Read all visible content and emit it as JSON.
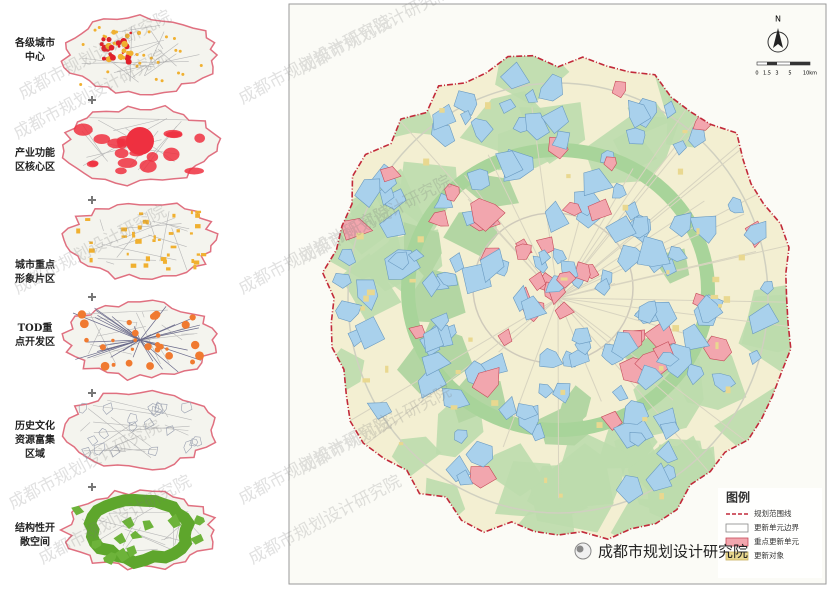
{
  "panels": [
    {
      "label": [
        "各级城市",
        "中心"
      ]
    },
    {
      "label": [
        "产业功能",
        "区核心区"
      ]
    },
    {
      "label": [
        "城市重点",
        "形象片区"
      ]
    },
    {
      "label": [
        "TOD重",
        "点开发区"
      ]
    },
    {
      "label": [
        "历史文化",
        "资源富集",
        "区域"
      ]
    },
    {
      "label": [
        "结构性开",
        "敞空间"
      ]
    }
  ],
  "legend": {
    "title": "图例",
    "items": [
      "规划范围线",
      "更新单元边界",
      "重点更新单元",
      "更新对象"
    ]
  },
  "north": "N",
  "scale": [
    "0",
    "1.5",
    "3",
    "5",
    "10km"
  ],
  "watermark": "成都市规划设计研究院",
  "footer": "成都市规划设计研究院"
}
